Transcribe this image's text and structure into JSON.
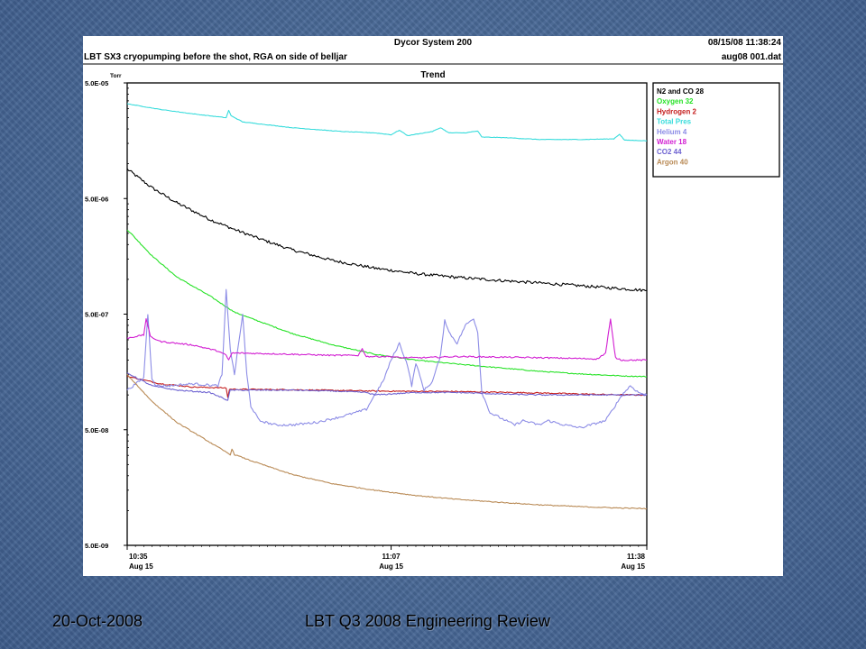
{
  "header": {
    "system_name": "Dycor System 200",
    "datetime": "08/15/08 11:38:24",
    "description": "LBT SX3 cryopumping before the shot, RGA on side of belljar",
    "filename": "aug08 001.dat",
    "plot_title": "Trend",
    "unit": "Torr"
  },
  "footer": {
    "date": "20-Oct-2008",
    "title": "LBT Q3 2008 Engineering Review"
  },
  "colors": {
    "n2_co_28": "#000000",
    "oxygen_32": "#27e227",
    "hydrogen_2": "#c41c1c",
    "total_pres": "#38dcdc",
    "helium_4": "#8c8ce6",
    "water_18": "#d21ed2",
    "co2_44": "#6f64d2",
    "argon_40": "#b98a55"
  },
  "chart_data": {
    "type": "line",
    "title": "Trend",
    "ylabel": "Torr",
    "yscale": "log",
    "ylim": [
      5e-09,
      5e-05
    ],
    "yticks": [
      "5.0E-05",
      "5.0E-06",
      "5.0E-07",
      "5.0E-08",
      "5.0E-09"
    ],
    "xlim": [
      0,
      63
    ],
    "x_unit": "minutes after 10:35",
    "xticks": [
      {
        "x": 0,
        "time": "10:35",
        "date": "Aug 15"
      },
      {
        "x": 32,
        "time": "11:07",
        "date": "Aug 15"
      },
      {
        "x": 63,
        "time": "11:38",
        "date": "Aug 15"
      }
    ],
    "legend_position": "top-right",
    "series": [
      {
        "name": "N2 and CO 28",
        "color_key": "n2_co_28",
        "noise": 0.025,
        "points": [
          [
            0,
            9e-06
          ],
          [
            3,
            6.2e-06
          ],
          [
            6,
            4.6e-06
          ],
          [
            10,
            3.3e-06
          ],
          [
            13,
            2.7e-06
          ],
          [
            16,
            2.25e-06
          ],
          [
            20,
            1.8e-06
          ],
          [
            25,
            1.45e-06
          ],
          [
            30,
            1.25e-06
          ],
          [
            35,
            1.12e-06
          ],
          [
            40,
            1.04e-06
          ],
          [
            45,
            9.8e-07
          ],
          [
            50,
            9.3e-07
          ],
          [
            55,
            8.8e-07
          ],
          [
            60,
            8.3e-07
          ],
          [
            63,
            8e-07
          ]
        ]
      },
      {
        "name": "Oxygen 32",
        "color_key": "oxygen_32",
        "noise": 0.008,
        "points": [
          [
            0,
            2.7e-06
          ],
          [
            3,
            1.6e-06
          ],
          [
            6,
            1.05e-06
          ],
          [
            10,
            7.2e-07
          ],
          [
            13,
            5.2e-07
          ],
          [
            15,
            4.6e-07
          ],
          [
            20,
            3.4e-07
          ],
          [
            25,
            2.7e-07
          ],
          [
            30,
            2.25e-07
          ],
          [
            35,
            2e-07
          ],
          [
            40,
            1.85e-07
          ],
          [
            45,
            1.72e-07
          ],
          [
            50,
            1.6e-07
          ],
          [
            55,
            1.52e-07
          ],
          [
            60,
            1.46e-07
          ],
          [
            63,
            1.44e-07
          ]
        ]
      },
      {
        "name": "Hydrogen 2",
        "color_key": "hydrogen_2",
        "noise": 0.01,
        "points": [
          [
            0,
            1.45e-07
          ],
          [
            4,
            1.25e-07
          ],
          [
            8,
            1.17e-07
          ],
          [
            12,
            1.15e-07
          ],
          [
            12.2,
            9.5e-08
          ],
          [
            12.4,
            1.12e-07
          ],
          [
            20,
            1.11e-07
          ],
          [
            30,
            1.08e-07
          ],
          [
            40,
            1.07e-07
          ],
          [
            50,
            1.04e-07
          ],
          [
            60,
            1e-07
          ],
          [
            63,
            1e-07
          ]
        ]
      },
      {
        "name": "Total Pres",
        "color_key": "total_pres",
        "noise": 0.004,
        "points": [
          [
            0,
            3.3e-05
          ],
          [
            4,
            2.95e-05
          ],
          [
            8,
            2.7e-05
          ],
          [
            12,
            2.5e-05
          ],
          [
            12.3,
            2.9e-05
          ],
          [
            12.6,
            2.6e-05
          ],
          [
            14,
            2.3e-05
          ],
          [
            20,
            2.05e-05
          ],
          [
            26,
            1.9e-05
          ],
          [
            30,
            1.85e-05
          ],
          [
            32,
            1.78e-05
          ],
          [
            33,
            1.95e-05
          ],
          [
            34,
            1.75e-05
          ],
          [
            37,
            1.9e-05
          ],
          [
            38,
            2.05e-05
          ],
          [
            39,
            1.85e-05
          ],
          [
            41,
            1.85e-05
          ],
          [
            42.5,
            1.92e-05
          ],
          [
            43,
            1.7e-05
          ],
          [
            46,
            1.68e-05
          ],
          [
            50,
            1.62e-05
          ],
          [
            55,
            1.62e-05
          ],
          [
            59,
            1.64e-05
          ],
          [
            59.7,
            1.8e-05
          ],
          [
            60.3,
            1.6e-05
          ],
          [
            63,
            1.58e-05
          ]
        ]
      },
      {
        "name": "Helium 4",
        "color_key": "helium_4",
        "noise": 0.02,
        "points": [
          [
            0,
            1.1e-07
          ],
          [
            2,
            1.4e-07
          ],
          [
            2.5,
            5e-07
          ],
          [
            3,
            1.4e-07
          ],
          [
            3.5,
            1.2e-07
          ],
          [
            5,
            1.2e-07
          ],
          [
            8,
            1.25e-07
          ],
          [
            11,
            1.2e-07
          ],
          [
            11.5,
            1.5e-07
          ],
          [
            12,
            8e-07
          ],
          [
            12.5,
            2.5e-07
          ],
          [
            13,
            1.5e-07
          ],
          [
            14,
            5e-07
          ],
          [
            14.5,
            1.5e-07
          ],
          [
            15,
            8e-08
          ],
          [
            16,
            6e-08
          ],
          [
            18,
            5.5e-08
          ],
          [
            20,
            5.5e-08
          ],
          [
            23,
            5.8e-08
          ],
          [
            26,
            6.5e-08
          ],
          [
            29,
            7.5e-08
          ],
          [
            30,
            1e-07
          ],
          [
            31,
            1.3e-07
          ],
          [
            32,
            2e-07
          ],
          [
            33,
            2.8e-07
          ],
          [
            34,
            1.8e-07
          ],
          [
            34.5,
            1.2e-07
          ],
          [
            35,
            1.9e-07
          ],
          [
            36,
            1.1e-07
          ],
          [
            37,
            1.3e-07
          ],
          [
            38,
            2.2e-07
          ],
          [
            38.5,
            4.5e-07
          ],
          [
            39,
            3.5e-07
          ],
          [
            40,
            2.8e-07
          ],
          [
            41,
            4e-07
          ],
          [
            42,
            4.6e-07
          ],
          [
            42.5,
            3.5e-07
          ],
          [
            43,
            1.05e-07
          ],
          [
            44,
            7e-08
          ],
          [
            47,
            5.5e-08
          ],
          [
            48,
            6e-08
          ],
          [
            50,
            5.5e-08
          ],
          [
            51,
            6e-08
          ],
          [
            53,
            5.5e-08
          ],
          [
            55,
            5.2e-08
          ],
          [
            58,
            6e-08
          ],
          [
            60,
            1e-07
          ],
          [
            61,
            1.2e-07
          ],
          [
            62,
            1.05e-07
          ],
          [
            63,
            1e-07
          ]
        ]
      },
      {
        "name": "Water 18",
        "color_key": "water_18",
        "noise": 0.012,
        "points": [
          [
            0,
            3.1e-07
          ],
          [
            2,
            3.3e-07
          ],
          [
            2.3,
            4.6e-07
          ],
          [
            2.8,
            3.2e-07
          ],
          [
            4,
            2.9e-07
          ],
          [
            8,
            2.7e-07
          ],
          [
            11,
            2.4e-07
          ],
          [
            12,
            2.2e-07
          ],
          [
            12.3,
            2e-07
          ],
          [
            12.7,
            2.3e-07
          ],
          [
            14,
            2.3e-07
          ],
          [
            20,
            2.25e-07
          ],
          [
            25,
            2.2e-07
          ],
          [
            28,
            2.2e-07
          ],
          [
            28.5,
            2.5e-07
          ],
          [
            29,
            2.15e-07
          ],
          [
            32,
            2.15e-07
          ],
          [
            33,
            2.1e-07
          ],
          [
            36,
            2.1e-07
          ],
          [
            40,
            2.15e-07
          ],
          [
            50,
            2.1e-07
          ],
          [
            57,
            2.05e-07
          ],
          [
            58,
            2.3e-07
          ],
          [
            58.6,
            4.5e-07
          ],
          [
            59.2,
            2.1e-07
          ],
          [
            60,
            2e-07
          ],
          [
            63,
            2e-07
          ]
        ]
      },
      {
        "name": "CO2 44",
        "color_key": "co2_44",
        "noise": 0.01,
        "points": [
          [
            0,
            1.55e-07
          ],
          [
            3,
            1.2e-07
          ],
          [
            6,
            1.1e-07
          ],
          [
            10,
            1.05e-07
          ],
          [
            12.2,
            9e-08
          ],
          [
            12.5,
            1.1e-07
          ],
          [
            16,
            1.1e-07
          ],
          [
            20,
            1.1e-07
          ],
          [
            25,
            1.08e-07
          ],
          [
            29,
            1.05e-07
          ],
          [
            30,
            1e-07
          ],
          [
            35,
            1.05e-07
          ],
          [
            40,
            1.05e-07
          ],
          [
            45,
            1.02e-07
          ],
          [
            50,
            1e-07
          ],
          [
            55,
            1e-07
          ],
          [
            60,
            1e-07
          ],
          [
            63,
            1e-07
          ]
        ]
      },
      {
        "name": "Argon 40",
        "color_key": "argon_40",
        "noise": 0.008,
        "points": [
          [
            0,
            1.5e-07
          ],
          [
            3,
            8.8e-08
          ],
          [
            6,
            5.8e-08
          ],
          [
            10,
            3.9e-08
          ],
          [
            12.5,
            3.05e-08
          ],
          [
            12.7,
            3.4e-08
          ],
          [
            13,
            3.05e-08
          ],
          [
            15,
            2.7e-08
          ],
          [
            20,
            2.05e-08
          ],
          [
            25,
            1.7e-08
          ],
          [
            30,
            1.5e-08
          ],
          [
            35,
            1.35e-08
          ],
          [
            40,
            1.25e-08
          ],
          [
            45,
            1.18e-08
          ],
          [
            50,
            1.12e-08
          ],
          [
            55,
            1.08e-08
          ],
          [
            60,
            1.05e-08
          ],
          [
            63,
            1.04e-08
          ]
        ]
      }
    ]
  }
}
